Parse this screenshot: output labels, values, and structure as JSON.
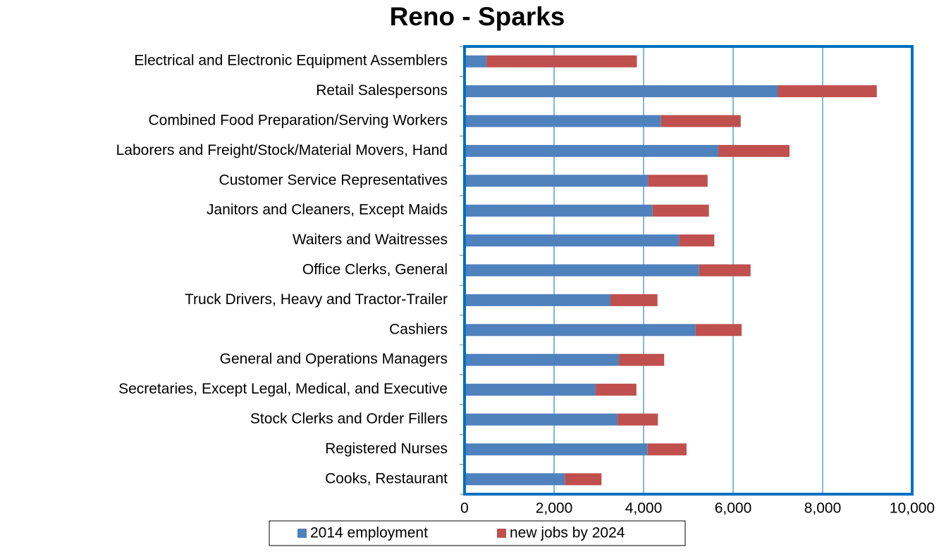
{
  "chart_data": {
    "type": "stacked_bar_horizontal",
    "title": "Reno - Sparks",
    "categories": [
      "Electrical and Electronic Equipment Assemblers",
      "Retail Salespersons",
      "Combined Food Preparation/Serving Workers",
      "Laborers and Freight/Stock/Material Movers, Hand",
      "Customer Service Representatives",
      "Janitors and Cleaners, Except Maids",
      "Waiters and Waitresses",
      "Office Clerks, General",
      "Truck Drivers, Heavy and Tractor-Trailer",
      "Cashiers",
      "General and Operations Managers",
      "Secretaries, Except Legal, Medical, and Executive",
      "Stock Clerks and Order Fillers",
      "Registered Nurses",
      "Cooks, Restaurant"
    ],
    "series": [
      {
        "name": "2014 employment",
        "color": "#4f81bd",
        "values": [
          490,
          7000,
          4390,
          5670,
          4100,
          4200,
          4790,
          5240,
          3260,
          5160,
          3450,
          2930,
          3420,
          4090,
          2240
        ]
      },
      {
        "name": "new jobs by 2024",
        "color": "#c0504d",
        "values": [
          3360,
          2210,
          1780,
          1590,
          1330,
          1260,
          790,
          1150,
          1050,
          1030,
          1010,
          910,
          900,
          870,
          820
        ]
      }
    ],
    "xlim": [
      0,
      10000
    ],
    "xticks": [
      0,
      {
        "value": 2000,
        "label": "2,000"
      },
      {
        "value": 4000,
        "label": "4,000"
      },
      {
        "value": 6000,
        "label": "6,000"
      },
      {
        "value": 8000,
        "label": "8,000"
      },
      {
        "value": 10000,
        "label": "10,000"
      }
    ],
    "grid": true,
    "legend": "bottom"
  }
}
